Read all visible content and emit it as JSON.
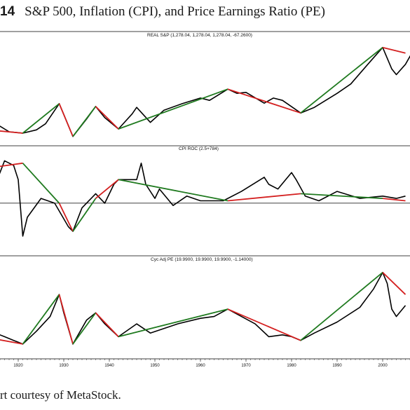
{
  "figure": {
    "number": "14",
    "title": "S&P 500, Inflation (CPI), and Price Earnings Ratio (PE)",
    "caption": "rt courtesy of MetaStock."
  },
  "colors": {
    "line": "#000000",
    "uptrend": "#1f7a1f",
    "downtrend": "#d42020",
    "axis": "#000000"
  },
  "chart_data": [
    {
      "type": "line",
      "title": "REAL S&P (1,278.04, 1,278.04, 1,278.04, -67.2600)",
      "x": [
        1913,
        1916,
        1918,
        1920,
        1921,
        1924,
        1926,
        1929,
        1930,
        1932,
        1935,
        1937,
        1939,
        1942,
        1945,
        1946,
        1949,
        1952,
        1956,
        1960,
        1962,
        1966,
        1968,
        1970,
        1974,
        1976,
        1978,
        1982,
        1985,
        1990,
        1993,
        1997,
        2000,
        2002,
        2003,
        2005,
        2007
      ],
      "y": [
        64,
        70,
        58,
        56,
        55,
        62,
        75,
        118,
        95,
        48,
        85,
        112,
        88,
        64,
        96,
        110,
        78,
        104,
        118,
        130,
        125,
        149,
        140,
        142,
        119,
        130,
        125,
        98,
        110,
        140,
        160,
        205,
        238,
        192,
        180,
        202,
        236
      ],
      "trendlines": [
        {
          "color": "downtrend",
          "x": [
            1910,
            1921
          ],
          "y": [
            65,
            55
          ]
        },
        {
          "color": "uptrend",
          "x": [
            1921,
            1929
          ],
          "y": [
            55,
            118
          ]
        },
        {
          "color": "downtrend",
          "x": [
            1929,
            1932
          ],
          "y": [
            118,
            48
          ]
        },
        {
          "color": "uptrend",
          "x": [
            1932,
            1937
          ],
          "y": [
            48,
            112
          ]
        },
        {
          "color": "downtrend",
          "x": [
            1937,
            1942
          ],
          "y": [
            112,
            64
          ]
        },
        {
          "color": "uptrend",
          "x": [
            1942,
            1966
          ],
          "y": [
            64,
            149
          ]
        },
        {
          "color": "downtrend",
          "x": [
            1966,
            1982
          ],
          "y": [
            149,
            98
          ]
        },
        {
          "color": "uptrend",
          "x": [
            1982,
            2000
          ],
          "y": [
            98,
            238
          ]
        },
        {
          "color": "downtrend",
          "x": [
            2000,
            2005
          ],
          "y": [
            238,
            226
          ]
        }
      ],
      "ylim": [
        40,
        260
      ]
    },
    {
      "type": "line",
      "title": "CPI ROC (2.5+784)",
      "x": [
        1913,
        1915,
        1917,
        1919,
        1920,
        1921,
        1922,
        1925,
        1928,
        1931,
        1932,
        1934,
        1937,
        1939,
        1941,
        1942,
        1946,
        1947,
        1948,
        1950,
        1951,
        1954,
        1957,
        1960,
        1965,
        1969,
        1974,
        1975,
        1977,
        1980,
        1981,
        1983,
        1986,
        1990,
        1995,
        2000,
        2003,
        2005
      ],
      "y": [
        12,
        8,
        18,
        16,
        10,
        -14,
        -6,
        2,
        0,
        -10,
        -12,
        -2,
        4,
        0,
        8,
        10,
        10,
        17,
        8,
        2,
        6,
        -1,
        3,
        1,
        1,
        5,
        11,
        8,
        6,
        13,
        10,
        3,
        1,
        5,
        2,
        3,
        2,
        3
      ],
      "trendlines": [
        {
          "color": "downtrend",
          "x": [
            1910,
            1921
          ],
          "y": [
            14,
            17
          ]
        },
        {
          "color": "uptrend",
          "x": [
            1921,
            1929
          ],
          "y": [
            17,
            0
          ]
        },
        {
          "color": "downtrend",
          "x": [
            1929,
            1932
          ],
          "y": [
            0,
            -12
          ]
        },
        {
          "color": "uptrend",
          "x": [
            1932,
            1937
          ],
          "y": [
            -12,
            2
          ]
        },
        {
          "color": "downtrend",
          "x": [
            1937,
            1942
          ],
          "y": [
            2,
            10
          ]
        },
        {
          "color": "uptrend",
          "x": [
            1942,
            1966
          ],
          "y": [
            10,
            1
          ]
        },
        {
          "color": "downtrend",
          "x": [
            1966,
            1982
          ],
          "y": [
            1,
            4
          ]
        },
        {
          "color": "uptrend",
          "x": [
            1982,
            2000
          ],
          "y": [
            4,
            2
          ]
        },
        {
          "color": "downtrend",
          "x": [
            2000,
            2005
          ],
          "y": [
            2,
            1
          ]
        }
      ],
      "reference_line": 0,
      "ylim": [
        -20,
        22
      ]
    },
    {
      "type": "line",
      "title": "Cyc Adj PE (19.9900, 19.9900, 19.9900, -1.14000)",
      "x": [
        1913,
        1915,
        1917,
        1919,
        1920,
        1921,
        1924,
        1927,
        1929,
        1930,
        1932,
        1935,
        1937,
        1939,
        1942,
        1946,
        1949,
        1955,
        1960,
        1963,
        1966,
        1969,
        1972,
        1975,
        1978,
        1980,
        1982,
        1985,
        1990,
        1995,
        1998,
        2000,
        2001,
        2002,
        2003,
        2005
      ],
      "y": [
        13,
        11,
        9,
        7,
        6,
        5,
        12,
        20,
        32,
        22,
        5,
        18,
        22,
        16,
        9,
        16,
        11,
        16,
        19,
        20,
        24,
        20,
        16,
        9,
        10,
        9,
        7,
        11,
        17,
        25,
        35,
        44,
        38,
        24,
        20,
        26
      ],
      "trendlines": [
        {
          "color": "downtrend",
          "x": [
            1910,
            1921
          ],
          "y": [
            10,
            5
          ]
        },
        {
          "color": "uptrend",
          "x": [
            1921,
            1929
          ],
          "y": [
            5,
            32
          ]
        },
        {
          "color": "downtrend",
          "x": [
            1929,
            1932
          ],
          "y": [
            32,
            5
          ]
        },
        {
          "color": "uptrend",
          "x": [
            1932,
            1937
          ],
          "y": [
            5,
            22
          ]
        },
        {
          "color": "downtrend",
          "x": [
            1937,
            1942
          ],
          "y": [
            22,
            9
          ]
        },
        {
          "color": "uptrend",
          "x": [
            1942,
            1966
          ],
          "y": [
            9,
            24
          ]
        },
        {
          "color": "downtrend",
          "x": [
            1966,
            1982
          ],
          "y": [
            24,
            7
          ]
        },
        {
          "color": "uptrend",
          "x": [
            1982,
            2000
          ],
          "y": [
            7,
            44
          ]
        },
        {
          "color": "downtrend",
          "x": [
            2000,
            2005
          ],
          "y": [
            44,
            32
          ]
        }
      ],
      "ylim": [
        0,
        50
      ]
    }
  ],
  "x_axis": {
    "ticks": [
      "1920",
      "1930",
      "1940",
      "1950",
      "1960",
      "1970",
      "1980",
      "1990",
      "2000"
    ],
    "tick_values": [
      1920,
      1930,
      1940,
      1950,
      1960,
      1970,
      1980,
      1990,
      2000
    ],
    "range": [
      1916,
      2006
    ]
  }
}
